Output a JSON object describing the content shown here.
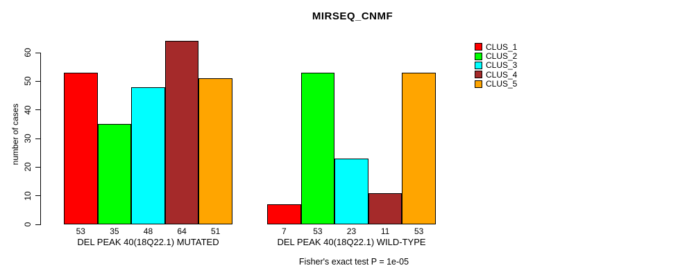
{
  "chart_data": {
    "type": "bar",
    "title": "MIRSEQ_CNMF",
    "ylabel": "number of cases",
    "ylim": [
      0,
      60
    ],
    "yticks": [
      0,
      10,
      20,
      30,
      40,
      50,
      60
    ],
    "grid": false,
    "legend_position": "right",
    "bar_value_labels": true,
    "series": [
      {
        "name": "CLUS_1",
        "color": "#FF0000"
      },
      {
        "name": "CLUS_2",
        "color": "#00FF00"
      },
      {
        "name": "CLUS_3",
        "color": "#00FFFF"
      },
      {
        "name": "CLUS_4",
        "color": "#A52A2A"
      },
      {
        "name": "CLUS_5",
        "color": "#FFA500"
      }
    ],
    "groups": [
      {
        "label": "DEL PEAK 40(18Q22.1) MUTATED",
        "values": [
          53,
          35,
          48,
          64,
          51
        ]
      },
      {
        "label": "DEL PEAK 40(18Q22.1) WILD-TYPE",
        "values": [
          7,
          53,
          23,
          11,
          53
        ]
      }
    ],
    "annotation": "Fisher's exact test P = 1e-05"
  }
}
